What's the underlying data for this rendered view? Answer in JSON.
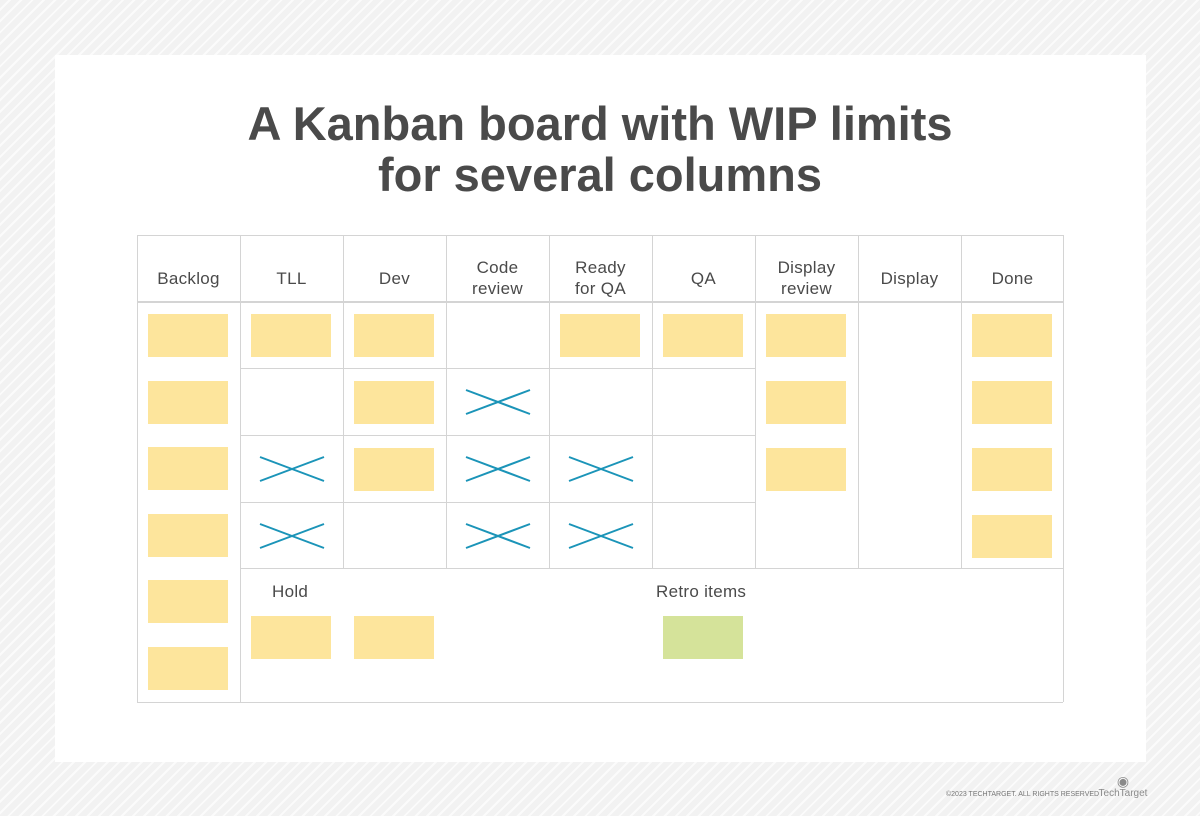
{
  "title": {
    "line1": "A Kanban board with WIP limits",
    "line2": "for several columns"
  },
  "colors": {
    "card": "#fde59c",
    "retro_card": "#d5e39a",
    "wip_x": "#1b94b8",
    "grid": "#d4d4d4",
    "text": "#4a4a4a"
  },
  "columns": [
    "Backlog",
    "TLL",
    "Dev",
    "Code\nreview",
    "Ready\nfor QA",
    "QA",
    "Display\nreview",
    "Display",
    "Done"
  ],
  "backlog_cards": 6,
  "wip_rows": [
    [
      "card",
      "card",
      "",
      "card",
      "card"
    ],
    [
      "",
      "card",
      "x",
      "",
      ""
    ],
    [
      "x",
      "card",
      "x",
      "x",
      ""
    ],
    [
      "x",
      "",
      "x",
      "x",
      ""
    ]
  ],
  "display_review_cards": 3,
  "display_cards": 0,
  "done_cards": 4,
  "hold": {
    "label": "Hold",
    "cards": 2
  },
  "retro": {
    "label": "Retro items",
    "cards": 1
  },
  "footer": {
    "copyright": "©2023 TECHTARGET. ALL RIGHTS RESERVED",
    "logo": "TechTarget"
  }
}
